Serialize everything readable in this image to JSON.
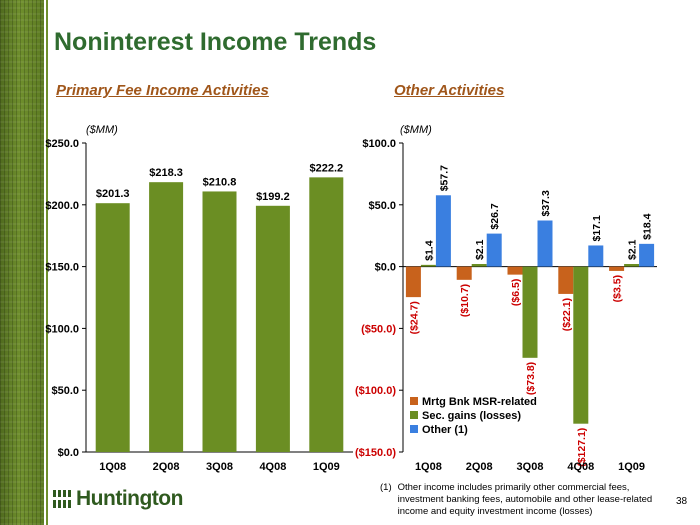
{
  "title": "Noninterest Income Trends",
  "left_subtitle": "Primary Fee Income Activities",
  "right_subtitle": "Other Activities",
  "logo_text": "Huntington",
  "footnote_marker": "(1)",
  "footnote_text": "Other income includes primarily other commercial fees, investment banking fees, automobile and other lease-related income and equity investment income (losses)",
  "page_number": "38",
  "colors": {
    "title": "#2f6b2f",
    "subtitle": "#a0561a",
    "green_bar": "#6b8e23",
    "orange_bar": "#c8621c",
    "blue_bar": "#3a7fe0",
    "negative_label": "#cc0000"
  },
  "chart_data": [
    {
      "type": "bar",
      "unit_label": "($MM)",
      "categories": [
        "1Q08",
        "2Q08",
        "3Q08",
        "4Q08",
        "1Q09"
      ],
      "values": [
        201.3,
        218.3,
        210.8,
        199.2,
        222.2
      ],
      "value_labels": [
        "$201.3",
        "$218.3",
        "$210.8",
        "$199.2",
        "$222.2"
      ],
      "ylim": [
        0,
        250
      ],
      "yticks": [
        0,
        50,
        100,
        150,
        200,
        250
      ],
      "ytick_labels": [
        "$0.0",
        "$50.0",
        "$100.0",
        "$150.0",
        "$200.0",
        "$250.0"
      ],
      "grid": false
    },
    {
      "type": "bar",
      "unit_label": "($MM)",
      "categories": [
        "1Q08",
        "2Q08",
        "3Q08",
        "4Q08",
        "1Q09"
      ],
      "series": [
        {
          "name": "Mrtg Bnk MSR-related",
          "color": "#c8621c",
          "values": [
            -24.7,
            -10.7,
            -6.5,
            -22.1,
            -3.5
          ],
          "labels": [
            "($24.7)",
            "($10.7)",
            "($6.5)",
            "($22.1)",
            "($3.5)"
          ]
        },
        {
          "name": "Sec. gains (losses)",
          "color": "#6b8e23",
          "values": [
            1.4,
            2.1,
            -73.8,
            -127.1,
            2.1
          ],
          "labels": [
            "$1.4",
            "$2.1",
            "($73.8)",
            "($127.1)",
            "$2.1"
          ]
        },
        {
          "name": "Other (1)",
          "color": "#3a7fe0",
          "values": [
            57.7,
            26.7,
            37.3,
            17.1,
            18.4
          ],
          "labels": [
            "$57.7",
            "$26.7",
            "$37.3",
            "$17.1",
            "$18.4"
          ]
        }
      ],
      "ylim": [
        -150,
        100
      ],
      "yticks": [
        -150,
        -100,
        -50,
        0,
        50,
        100
      ],
      "ytick_labels": [
        "($150.0)",
        "($100.0)",
        "($50.0)",
        "$0.0",
        "$50.0",
        "$100.0"
      ],
      "legend_position": "bottom-left",
      "grid": false
    }
  ]
}
